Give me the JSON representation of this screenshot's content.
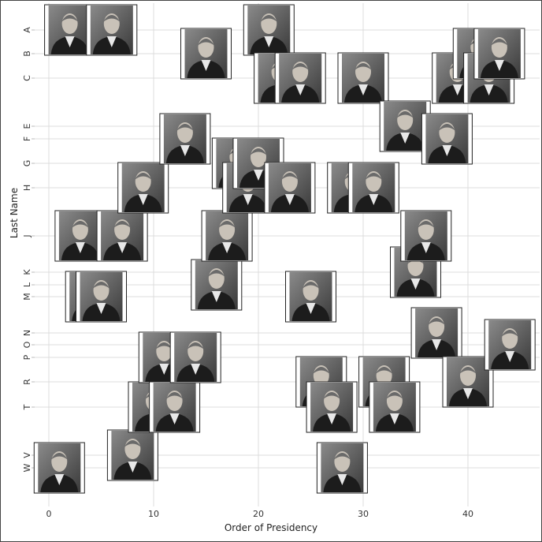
{
  "chart_data": {
    "type": "scatter",
    "title": "",
    "xlabel": "Order of Presidency",
    "ylabel": "Last Name",
    "xlim": [
      -1.5,
      46.5
    ],
    "x_ticks": [
      0,
      10,
      20,
      30,
      40
    ],
    "y_ticks": [
      "A",
      "B",
      "C",
      "E",
      "F",
      "G",
      "H",
      "J",
      "K",
      "L",
      "M",
      "N",
      "O",
      "P",
      "R",
      "T",
      "V",
      "W"
    ],
    "grid": true,
    "legend": "none",
    "marker": "portrait-photo",
    "points": [
      {
        "x": 1,
        "y": "W"
      },
      {
        "x": 2,
        "y": "A"
      },
      {
        "x": 3,
        "y": "J"
      },
      {
        "x": 4,
        "y": "M"
      },
      {
        "x": 5,
        "y": "M"
      },
      {
        "x": 6,
        "y": "A"
      },
      {
        "x": 7,
        "y": "J"
      },
      {
        "x": 8,
        "y": "V"
      },
      {
        "x": 9,
        "y": "H"
      },
      {
        "x": 10,
        "y": "T"
      },
      {
        "x": 11,
        "y": "P"
      },
      {
        "x": 12,
        "y": "T"
      },
      {
        "x": 13,
        "y": "F"
      },
      {
        "x": 14,
        "y": "P"
      },
      {
        "x": 15,
        "y": "B"
      },
      {
        "x": 16,
        "y": "L"
      },
      {
        "x": 17,
        "y": "J"
      },
      {
        "x": 18,
        "y": "G"
      },
      {
        "x": 19,
        "y": "H"
      },
      {
        "x": 20,
        "y": "G"
      },
      {
        "x": 21,
        "y": "A"
      },
      {
        "x": 22,
        "y": "C"
      },
      {
        "x": 23,
        "y": "H"
      },
      {
        "x": 24,
        "y": "C"
      },
      {
        "x": 25,
        "y": "M"
      },
      {
        "x": 26,
        "y": "R"
      },
      {
        "x": 27,
        "y": "T"
      },
      {
        "x": 28,
        "y": "W"
      },
      {
        "x": 29,
        "y": "H"
      },
      {
        "x": 30,
        "y": "C"
      },
      {
        "x": 31,
        "y": "H"
      },
      {
        "x": 32,
        "y": "R"
      },
      {
        "x": 33,
        "y": "T"
      },
      {
        "x": 34,
        "y": "E"
      },
      {
        "x": 35,
        "y": "K"
      },
      {
        "x": 36,
        "y": "J"
      },
      {
        "x": 37,
        "y": "N"
      },
      {
        "x": 38,
        "y": "F"
      },
      {
        "x": 39,
        "y": "C"
      },
      {
        "x": 40,
        "y": "R"
      },
      {
        "x": 41,
        "y": "B"
      },
      {
        "x": 42,
        "y": "C"
      },
      {
        "x": 43,
        "y": "B"
      },
      {
        "x": 44,
        "y": "O"
      }
    ]
  }
}
